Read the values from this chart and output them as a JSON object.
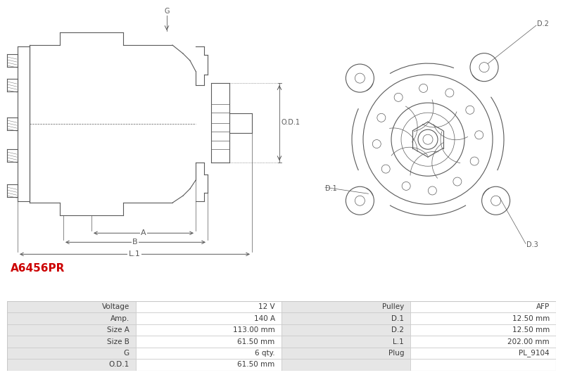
{
  "title": "A6456PR",
  "title_color": "#cc0000",
  "bg_color": "#ffffff",
  "table_data": [
    [
      "Voltage",
      "12 V",
      "Pulley",
      "AFP"
    ],
    [
      "Amp.",
      "140 A",
      "D.1",
      "12.50 mm"
    ],
    [
      "Size A",
      "113.00 mm",
      "D.2",
      "12.50 mm"
    ],
    [
      "Size B",
      "61.50 mm",
      "L.1",
      "202.00 mm"
    ],
    [
      "G",
      "6 qty.",
      "Plug",
      "PL_9104"
    ],
    [
      "O.D.1",
      "61.50 mm",
      "",
      ""
    ]
  ],
  "line_color": "#5a5a5a",
  "dim_color": "#5a5a5a",
  "table_fontsize": 7.5
}
